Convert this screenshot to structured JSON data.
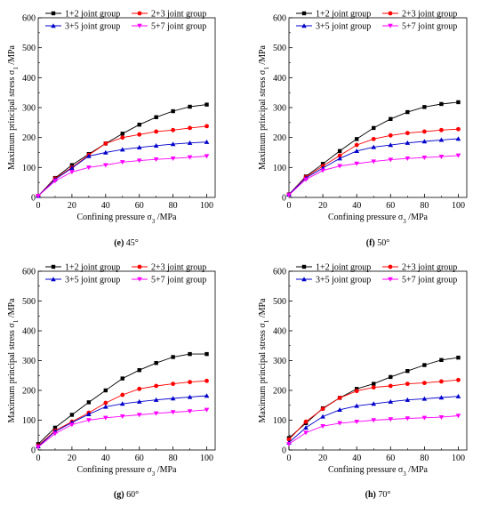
{
  "series_colors": [
    "#000000",
    "#ff0000",
    "#0000cc",
    "#ff00ff"
  ],
  "chart_data": [
    {
      "type": "line",
      "caption_letter": "(e)",
      "caption_text": " 45°",
      "xlabel": "Confining pressure σ3 /MPa",
      "ylabel": "Maximum principal stress σ1 /MPa",
      "xlim": [
        0,
        105
      ],
      "ylim": [
        0,
        600
      ],
      "xticks": [
        "0",
        "20",
        "40",
        "60",
        "80",
        "100"
      ],
      "yticks": [
        "0",
        "100",
        "200",
        "300",
        "400",
        "500",
        "600"
      ],
      "x": [
        0,
        10,
        20,
        30,
        40,
        50,
        60,
        70,
        80,
        90,
        100
      ],
      "series": [
        {
          "name": "1+2 joint group",
          "values": [
            5,
            65,
            108,
            145,
            180,
            213,
            243,
            268,
            288,
            303,
            310
          ]
        },
        {
          "name": "2+3 joint group",
          "values": [
            5,
            63,
            100,
            142,
            180,
            200,
            210,
            220,
            225,
            232,
            238
          ]
        },
        {
          "name": "3+5 joint group",
          "values": [
            5,
            60,
            98,
            138,
            150,
            160,
            167,
            173,
            178,
            182,
            185
          ]
        },
        {
          "name": "5+7 joint group",
          "values": [
            5,
            55,
            85,
            100,
            108,
            118,
            123,
            127,
            130,
            134,
            138
          ]
        }
      ]
    },
    {
      "type": "line",
      "caption_letter": "(f)",
      "caption_text": " 50°",
      "xlabel": "Confining pressure σ3 /MPa",
      "ylabel": "Maximum principal stress σ1 /MPa",
      "xlim": [
        0,
        105
      ],
      "ylim": [
        0,
        600
      ],
      "xticks": [
        "0",
        "20",
        "40",
        "60",
        "80",
        "100"
      ],
      "yticks": [
        "0",
        "100",
        "200",
        "300",
        "400",
        "500",
        "600"
      ],
      "x": [
        0,
        10,
        20,
        30,
        40,
        50,
        60,
        70,
        80,
        90,
        100
      ],
      "series": [
        {
          "name": "1+2 joint group",
          "values": [
            10,
            70,
            112,
            155,
            195,
            232,
            262,
            285,
            302,
            312,
            318
          ]
        },
        {
          "name": "2+3 joint group",
          "values": [
            10,
            68,
            105,
            140,
            175,
            195,
            207,
            215,
            220,
            225,
            228
          ]
        },
        {
          "name": "3+5 joint group",
          "values": [
            10,
            65,
            98,
            130,
            155,
            168,
            175,
            182,
            187,
            192,
            196
          ]
        },
        {
          "name": "5+7 joint group",
          "values": [
            8,
            60,
            90,
            105,
            113,
            120,
            126,
            130,
            133,
            136,
            140
          ]
        }
      ]
    },
    {
      "type": "line",
      "caption_letter": "(g)",
      "caption_text": " 60°",
      "xlabel": "Confining pressure σ3 /MPa",
      "ylabel": "Maximum principal stress σ1 /MPa",
      "xlim": [
        0,
        105
      ],
      "ylim": [
        0,
        600
      ],
      "xticks": [
        "0",
        "20",
        "40",
        "60",
        "80",
        "100"
      ],
      "yticks": [
        "0",
        "100",
        "200",
        "300",
        "400",
        "500",
        "600"
      ],
      "x": [
        0,
        10,
        20,
        30,
        40,
        50,
        60,
        70,
        80,
        90,
        100
      ],
      "series": [
        {
          "name": "1+2 joint group",
          "values": [
            20,
            75,
            118,
            160,
            200,
            240,
            268,
            292,
            312,
            322,
            322
          ]
        },
        {
          "name": "2+3 joint group",
          "values": [
            15,
            65,
            95,
            125,
            158,
            185,
            205,
            215,
            222,
            228,
            232
          ]
        },
        {
          "name": "3+5 joint group",
          "values": [
            12,
            62,
            92,
            120,
            145,
            155,
            162,
            168,
            173,
            178,
            182
          ]
        },
        {
          "name": "5+7 joint group",
          "values": [
            10,
            55,
            85,
            100,
            108,
            113,
            118,
            123,
            127,
            130,
            135
          ]
        }
      ]
    },
    {
      "type": "line",
      "caption_letter": "(h)",
      "caption_text": " 70°",
      "xlabel": "Confining pressure σ3 /MPa",
      "ylabel": "Maximum principal stress σ1 /MPa",
      "xlim": [
        0,
        105
      ],
      "ylim": [
        0,
        600
      ],
      "xticks": [
        "0",
        "20",
        "40",
        "60",
        "80",
        "100"
      ],
      "yticks": [
        "0",
        "100",
        "200",
        "300",
        "400",
        "500",
        "600"
      ],
      "x": [
        0,
        10,
        20,
        30,
        40,
        50,
        60,
        70,
        80,
        90,
        100
      ],
      "series": [
        {
          "name": "1+2 joint group",
          "values": [
            40,
            90,
            140,
            175,
            205,
            222,
            245,
            265,
            285,
            302,
            310
          ]
        },
        {
          "name": "2+3 joint group",
          "values": [
            35,
            95,
            138,
            175,
            198,
            210,
            215,
            222,
            225,
            230,
            235
          ]
        },
        {
          "name": "3+5 joint group",
          "values": [
            25,
            75,
            112,
            135,
            148,
            155,
            162,
            168,
            172,
            176,
            180
          ]
        },
        {
          "name": "5+7 joint group",
          "values": [
            20,
            58,
            80,
            90,
            95,
            100,
            103,
            106,
            108,
            110,
            115
          ]
        }
      ]
    }
  ]
}
